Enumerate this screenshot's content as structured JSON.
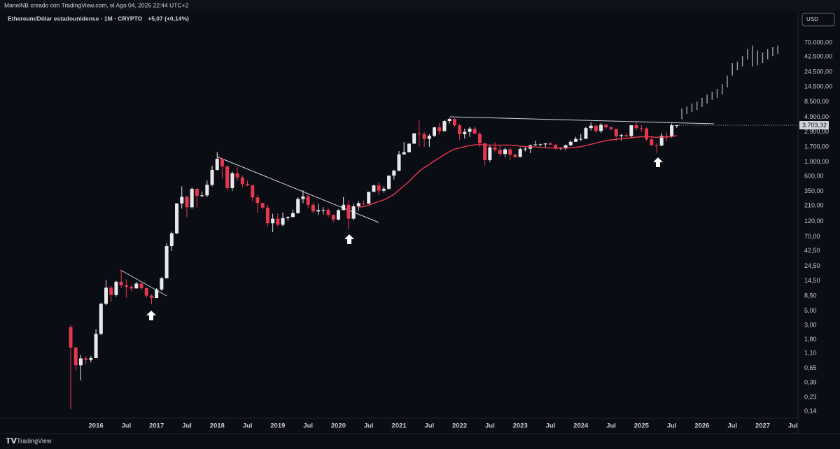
{
  "header": "ManelNB creado con TradingView.com, el Ago 04, 2025 22:44 UTC+2",
  "footer": "TradingView",
  "currency": "USD",
  "chart_data": {
    "type": "candlestick",
    "title": "Ethereum/Dólar estadounidense · 1M · CRYPTO",
    "change_label": "+5,07 (+0,14%)",
    "up_color": "#e8e9ed",
    "down_color": "#e5384f",
    "log_scale": true,
    "grid": false,
    "x": [
      "2015-08",
      "2015-09",
      "2015-10",
      "2015-11",
      "2015-12",
      "2016-01",
      "2016-02",
      "2016-03",
      "2016-04",
      "2016-05",
      "2016-06",
      "2016-07",
      "2016-08",
      "2016-09",
      "2016-10",
      "2016-11",
      "2016-12",
      "2017-01",
      "2017-02",
      "2017-03",
      "2017-04",
      "2017-05",
      "2017-06",
      "2017-07",
      "2017-08",
      "2017-09",
      "2017-10",
      "2017-11",
      "2017-12",
      "2018-01",
      "2018-02",
      "2018-03",
      "2018-04",
      "2018-05",
      "2018-06",
      "2018-07",
      "2018-08",
      "2018-09",
      "2018-10",
      "2018-11",
      "2018-12",
      "2019-01",
      "2019-02",
      "2019-03",
      "2019-04",
      "2019-05",
      "2019-06",
      "2019-07",
      "2019-08",
      "2019-09",
      "2019-10",
      "2019-11",
      "2019-12",
      "2020-01",
      "2020-02",
      "2020-03",
      "2020-04",
      "2020-05",
      "2020-06",
      "2020-07",
      "2020-08",
      "2020-09",
      "2020-10",
      "2020-11",
      "2020-12",
      "2021-01",
      "2021-02",
      "2021-03",
      "2021-04",
      "2021-05",
      "2021-06",
      "2021-07",
      "2021-08",
      "2021-09",
      "2021-10",
      "2021-11",
      "2021-12",
      "2022-01",
      "2022-02",
      "2022-03",
      "2022-04",
      "2022-05",
      "2022-06",
      "2022-07",
      "2022-08",
      "2022-09",
      "2022-10",
      "2022-11",
      "2022-12",
      "2023-01",
      "2023-02",
      "2023-03",
      "2023-04",
      "2023-05",
      "2023-06",
      "2023-07",
      "2023-08",
      "2023-09",
      "2023-10",
      "2023-11",
      "2023-12",
      "2024-01",
      "2024-02",
      "2024-03",
      "2024-04",
      "2024-05",
      "2024-06",
      "2024-07",
      "2024-08",
      "2024-09",
      "2024-10",
      "2024-11",
      "2024-12",
      "2025-01",
      "2025-02",
      "2025-03",
      "2025-04",
      "2025-05",
      "2025-06",
      "2025-07",
      "2025-08"
    ],
    "open": [
      2.8,
      1.35,
      0.72,
      0.92,
      0.87,
      0.93,
      2.2,
      6.4,
      11.4,
      8.8,
      14.1,
      12.4,
      11.8,
      11.1,
      13.2,
      11.2,
      8.6,
      7.9,
      10.7,
      15.9,
      50,
      79,
      229,
      290,
      200,
      385,
      300,
      305,
      445,
      755,
      1120,
      855,
      395,
      670,
      575,
      455,
      435,
      283,
      232,
      197,
      113,
      133,
      107,
      136,
      141,
      162,
      268,
      294,
      218,
      172,
      180,
      182,
      152,
      129,
      180,
      218,
      133,
      206,
      231,
      226,
      345,
      434,
      360,
      386,
      615,
      737,
      1315,
      1420,
      1920,
      2775,
      2710,
      2275,
      2540,
      3430,
      3000,
      4290,
      4630,
      3680,
      2690,
      2920,
      3280,
      2730,
      1940,
      1070,
      1680,
      1550,
      1330,
      1570,
      1295,
      1195,
      1585,
      1605,
      1820,
      1870,
      1875,
      1935,
      1855,
      1645,
      1670,
      1815,
      2050,
      2280,
      2283,
      3340,
      3650,
      3015,
      3760,
      3430,
      3230,
      2510,
      2600,
      2510,
      3700,
      3330,
      3300,
      2240,
      1820,
      1795,
      2530,
      2485,
      3698.25
    ],
    "high": [
      3.0,
      1.4,
      1.05,
      1.0,
      1.0,
      2.6,
      6.7,
      15,
      12,
      14.5,
      21.5,
      15.3,
      12.5,
      14,
      13.5,
      11.6,
      9,
      11.2,
      16.8,
      55,
      84,
      230,
      420,
      300,
      400,
      395,
      350,
      520,
      880,
      1420,
      1160,
      880,
      710,
      835,
      625,
      515,
      435,
      310,
      235,
      220,
      158,
      160,
      165,
      145,
      184,
      285,
      365,
      320,
      235,
      225,
      200,
      193,
      155,
      185,
      288,
      253,
      227,
      250,
      254,
      347,
      445,
      488,
      420,
      620,
      755,
      1475,
      2040,
      1945,
      2800,
      4370,
      2890,
      2700,
      3470,
      4030,
      4460,
      4870,
      4780,
      3900,
      3280,
      3480,
      3580,
      2960,
      1970,
      1780,
      2030,
      1790,
      1660,
      1680,
      1350,
      1680,
      1740,
      1850,
      2140,
      1930,
      1950,
      2030,
      1860,
      1690,
      1865,
      2140,
      2450,
      2720,
      3520,
      4090,
      3730,
      3970,
      3890,
      3560,
      3280,
      2730,
      2770,
      3700,
      4110,
      3740,
      3440,
      2550,
      1950,
      2790,
      2880,
      3940,
      3735
    ],
    "low": [
      0.15,
      0.6,
      0.42,
      0.75,
      0.8,
      0.93,
      2.1,
      6.1,
      6.8,
      8.3,
      11.3,
      8,
      10,
      11.1,
      10.5,
      8,
      6.3,
      7.9,
      10.2,
      15.9,
      42,
      77,
      190,
      140,
      190,
      197,
      285,
      285,
      420,
      735,
      565,
      365,
      360,
      505,
      405,
      420,
      250,
      167,
      187,
      101,
      82,
      100,
      101,
      125,
      139,
      158,
      230,
      195,
      160,
      152,
      155,
      140,
      117,
      126,
      180,
      90,
      126,
      177,
      215,
      225,
      345,
      310,
      335,
      375,
      535,
      715,
      1300,
      1400,
      1900,
      1730,
      1700,
      1720,
      2450,
      2650,
      2970,
      3950,
      3500,
      2160,
      2300,
      2450,
      2710,
      1700,
      880,
      1000,
      1420,
      1220,
      1190,
      1070,
      1150,
      1190,
      1460,
      1370,
      1780,
      1740,
      1625,
      1820,
      1550,
      1530,
      1520,
      1760,
      2050,
      2100,
      2270,
      3060,
      2800,
      2820,
      3240,
      3080,
      2120,
      2150,
      2300,
      2360,
      3100,
      2920,
      2120,
      1760,
      1385,
      1750,
      2110,
      2375,
      3360
    ],
    "close": [
      1.35,
      0.72,
      0.92,
      0.87,
      0.93,
      2.2,
      6.4,
      11.4,
      8.8,
      14.1,
      12.4,
      11.8,
      11.1,
      13.2,
      11.2,
      8.6,
      7.9,
      10.7,
      15.9,
      50,
      79,
      229,
      290,
      200,
      385,
      300,
      305,
      445,
      755,
      1120,
      855,
      395,
      670,
      575,
      455,
      435,
      283,
      232,
      197,
      113,
      133,
      107,
      136,
      141,
      162,
      268,
      294,
      218,
      172,
      180,
      182,
      152,
      129,
      180,
      218,
      133,
      206,
      231,
      226,
      345,
      434,
      360,
      386,
      615,
      737,
      1315,
      1420,
      1920,
      2775,
      2710,
      2275,
      2540,
      3430,
      3000,
      4290,
      4630,
      3680,
      2690,
      2920,
      3280,
      2730,
      1940,
      1070,
      1680,
      1550,
      1330,
      1570,
      1295,
      1195,
      1585,
      1605,
      1820,
      1870,
      1875,
      1935,
      1855,
      1645,
      1670,
      1815,
      2050,
      2280,
      2283,
      3340,
      3650,
      3015,
      3760,
      3430,
      3230,
      2510,
      2600,
      2510,
      3700,
      3330,
      3300,
      2240,
      1820,
      1795,
      2530,
      2485,
      3698.25,
      3703.32
    ],
    "moving_average": {
      "color": "#e5384f",
      "values": [
        null,
        null,
        null,
        null,
        null,
        null,
        null,
        null,
        null,
        null,
        null,
        null,
        null,
        null,
        null,
        null,
        null,
        null,
        null,
        null,
        null,
        null,
        null,
        null,
        null,
        null,
        null,
        null,
        null,
        null,
        null,
        null,
        null,
        null,
        null,
        null,
        null,
        null,
        null,
        null,
        null,
        null,
        null,
        null,
        null,
        null,
        null,
        null,
        null,
        null,
        null,
        null,
        null,
        null,
        null,
        null,
        null,
        200,
        205,
        215,
        230,
        245,
        260,
        285,
        315,
        370,
        430,
        500,
        600,
        720,
        820,
        920,
        1040,
        1160,
        1300,
        1450,
        1580,
        1660,
        1720,
        1790,
        1840,
        1860,
        1840,
        1830,
        1820,
        1820,
        1830,
        1830,
        1800,
        1760,
        1730,
        1720,
        1710,
        1680,
        1660,
        1650,
        1640,
        1630,
        1640,
        1660,
        1690,
        1720,
        1790,
        1880,
        1960,
        2050,
        2140,
        2200,
        2240,
        2280,
        2320,
        2370,
        2420,
        2460,
        2470,
        2440,
        2400,
        2420,
        2420,
        2480,
        2550
      ]
    },
    "projection": {
      "color": "#9598a1",
      "x": [
        "2025-09",
        "2025-10",
        "2025-11",
        "2025-12",
        "2026-01",
        "2026-02",
        "2026-03",
        "2026-04",
        "2026-05",
        "2026-06",
        "2026-07",
        "2026-08",
        "2026-09",
        "2026-10",
        "2026-11",
        "2026-12",
        "2027-01",
        "2027-02",
        "2027-03",
        "2027-04"
      ],
      "low": [
        4600,
        5500,
        5900,
        6400,
        7100,
        8000,
        9100,
        9800,
        11000,
        14200,
        21600,
        26400,
        29900,
        38400,
        29900,
        31400,
        33900,
        38400,
        43500,
        46800
      ],
      "high": [
        6700,
        7200,
        8000,
        8600,
        9800,
        11000,
        12200,
        13500,
        16000,
        21600,
        33900,
        35600,
        43500,
        55700,
        63100,
        53000,
        49200,
        55700,
        60000,
        63100
      ]
    },
    "last_price": {
      "value": 3703.32,
      "label": "3.703,32"
    },
    "xlim": [
      "2014-06",
      "2027-08"
    ],
    "ylim": [
      0.104,
      118000
    ],
    "yticks": [
      {
        "value": 70000,
        "label": "70.000,00"
      },
      {
        "value": 42500,
        "label": "42.500,00"
      },
      {
        "value": 24500,
        "label": "24.500,00"
      },
      {
        "value": 14500,
        "label": "14.500,00"
      },
      {
        "value": 8500,
        "label": "8.500,00"
      },
      {
        "value": 4900,
        "label": "4.900,00"
      },
      {
        "value": 2900,
        "label": "2.900,00"
      },
      {
        "value": 1700,
        "label": "1.700,00"
      },
      {
        "value": 1000,
        "label": "1.000,00"
      },
      {
        "value": 600,
        "label": "600,00"
      },
      {
        "value": 350,
        "label": "350,00"
      },
      {
        "value": 210,
        "label": "210,00"
      },
      {
        "value": 120,
        "label": "120,00"
      },
      {
        "value": 70,
        "label": "70,00"
      },
      {
        "value": 42.5,
        "label": "42,50"
      },
      {
        "value": 24.5,
        "label": "24,50"
      },
      {
        "value": 14.5,
        "label": "14,50"
      },
      {
        "value": 8.5,
        "label": "8,50"
      },
      {
        "value": 5,
        "label": "5,00"
      },
      {
        "value": 3,
        "label": "3,00"
      },
      {
        "value": 1.8,
        "label": "1,80"
      },
      {
        "value": 1.1,
        "label": "1,10"
      },
      {
        "value": 0.65,
        "label": "0,65"
      },
      {
        "value": 0.39,
        "label": "0,39"
      },
      {
        "value": 0.23,
        "label": "0,23"
      },
      {
        "value": 0.14,
        "label": "0,14"
      }
    ],
    "xticks": [
      {
        "value": "2016-01",
        "label": "2016"
      },
      {
        "value": "2016-07",
        "label": "Jul"
      },
      {
        "value": "2017-01",
        "label": "2017"
      },
      {
        "value": "2017-07",
        "label": "Jul"
      },
      {
        "value": "2018-01",
        "label": "2018"
      },
      {
        "value": "2018-07",
        "label": "Jul"
      },
      {
        "value": "2019-01",
        "label": "2019"
      },
      {
        "value": "2019-07",
        "label": "Jul"
      },
      {
        "value": "2020-01",
        "label": "2020"
      },
      {
        "value": "2020-07",
        "label": "Jul"
      },
      {
        "value": "2021-01",
        "label": "2021"
      },
      {
        "value": "2021-07",
        "label": "Jul"
      },
      {
        "value": "2022-01",
        "label": "2022"
      },
      {
        "value": "2022-07",
        "label": "Jul"
      },
      {
        "value": "2023-01",
        "label": "2023"
      },
      {
        "value": "2023-07",
        "label": "Jul"
      },
      {
        "value": "2024-01",
        "label": "2024"
      },
      {
        "value": "2024-07",
        "label": "Jul"
      },
      {
        "value": "2025-01",
        "label": "2025"
      },
      {
        "value": "2025-07",
        "label": "Jul"
      },
      {
        "value": "2026-01",
        "label": "2026"
      },
      {
        "value": "2026-07",
        "label": "Jul"
      },
      {
        "value": "2027-01",
        "label": "2027"
      },
      {
        "value": "2027-07",
        "label": "Jul"
      }
    ]
  }
}
